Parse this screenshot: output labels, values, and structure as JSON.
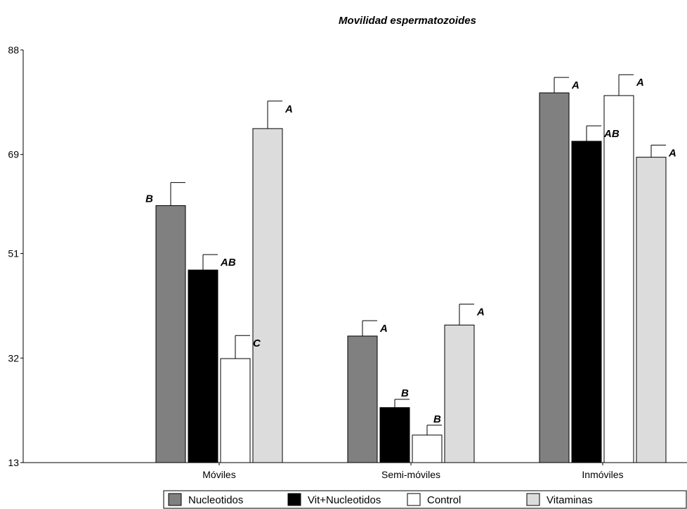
{
  "chart_data": {
    "type": "bar",
    "title": "Movilidad espermatozoides",
    "xlabel": "",
    "ylabel": "",
    "ylim": [
      13,
      88
    ],
    "yticks": [
      13,
      32,
      51,
      69,
      88
    ],
    "categories": [
      "Móviles",
      "Semi-móviles",
      "Inmóviles"
    ],
    "grid": false,
    "legend_position": "bottom",
    "series": [
      {
        "name": "Nucleotidos",
        "color": "#808080",
        "values": [
          59.7,
          36.0,
          80.2
        ],
        "errors": [
          4.2,
          2.8,
          2.8
        ],
        "letters": [
          "B",
          "A",
          "A"
        ]
      },
      {
        "name": "Vit+Nucleotidos",
        "color": "#000000",
        "values": [
          48.0,
          23.0,
          71.4
        ],
        "errors": [
          2.8,
          1.5,
          2.8
        ],
        "letters": [
          "AB",
          "B",
          "AB"
        ]
      },
      {
        "name": "Control",
        "color": "#ffffff",
        "values": [
          31.9,
          18.0,
          79.7
        ],
        "errors": [
          4.2,
          1.8,
          3.8
        ],
        "letters": [
          "C",
          "B",
          "A"
        ]
      },
      {
        "name": "Vitaminas",
        "color": "#dcdcdc",
        "values": [
          73.7,
          38.0,
          68.5
        ],
        "errors": [
          5.0,
          3.8,
          2.2
        ],
        "letters": [
          "A",
          "A",
          "A"
        ]
      }
    ]
  }
}
